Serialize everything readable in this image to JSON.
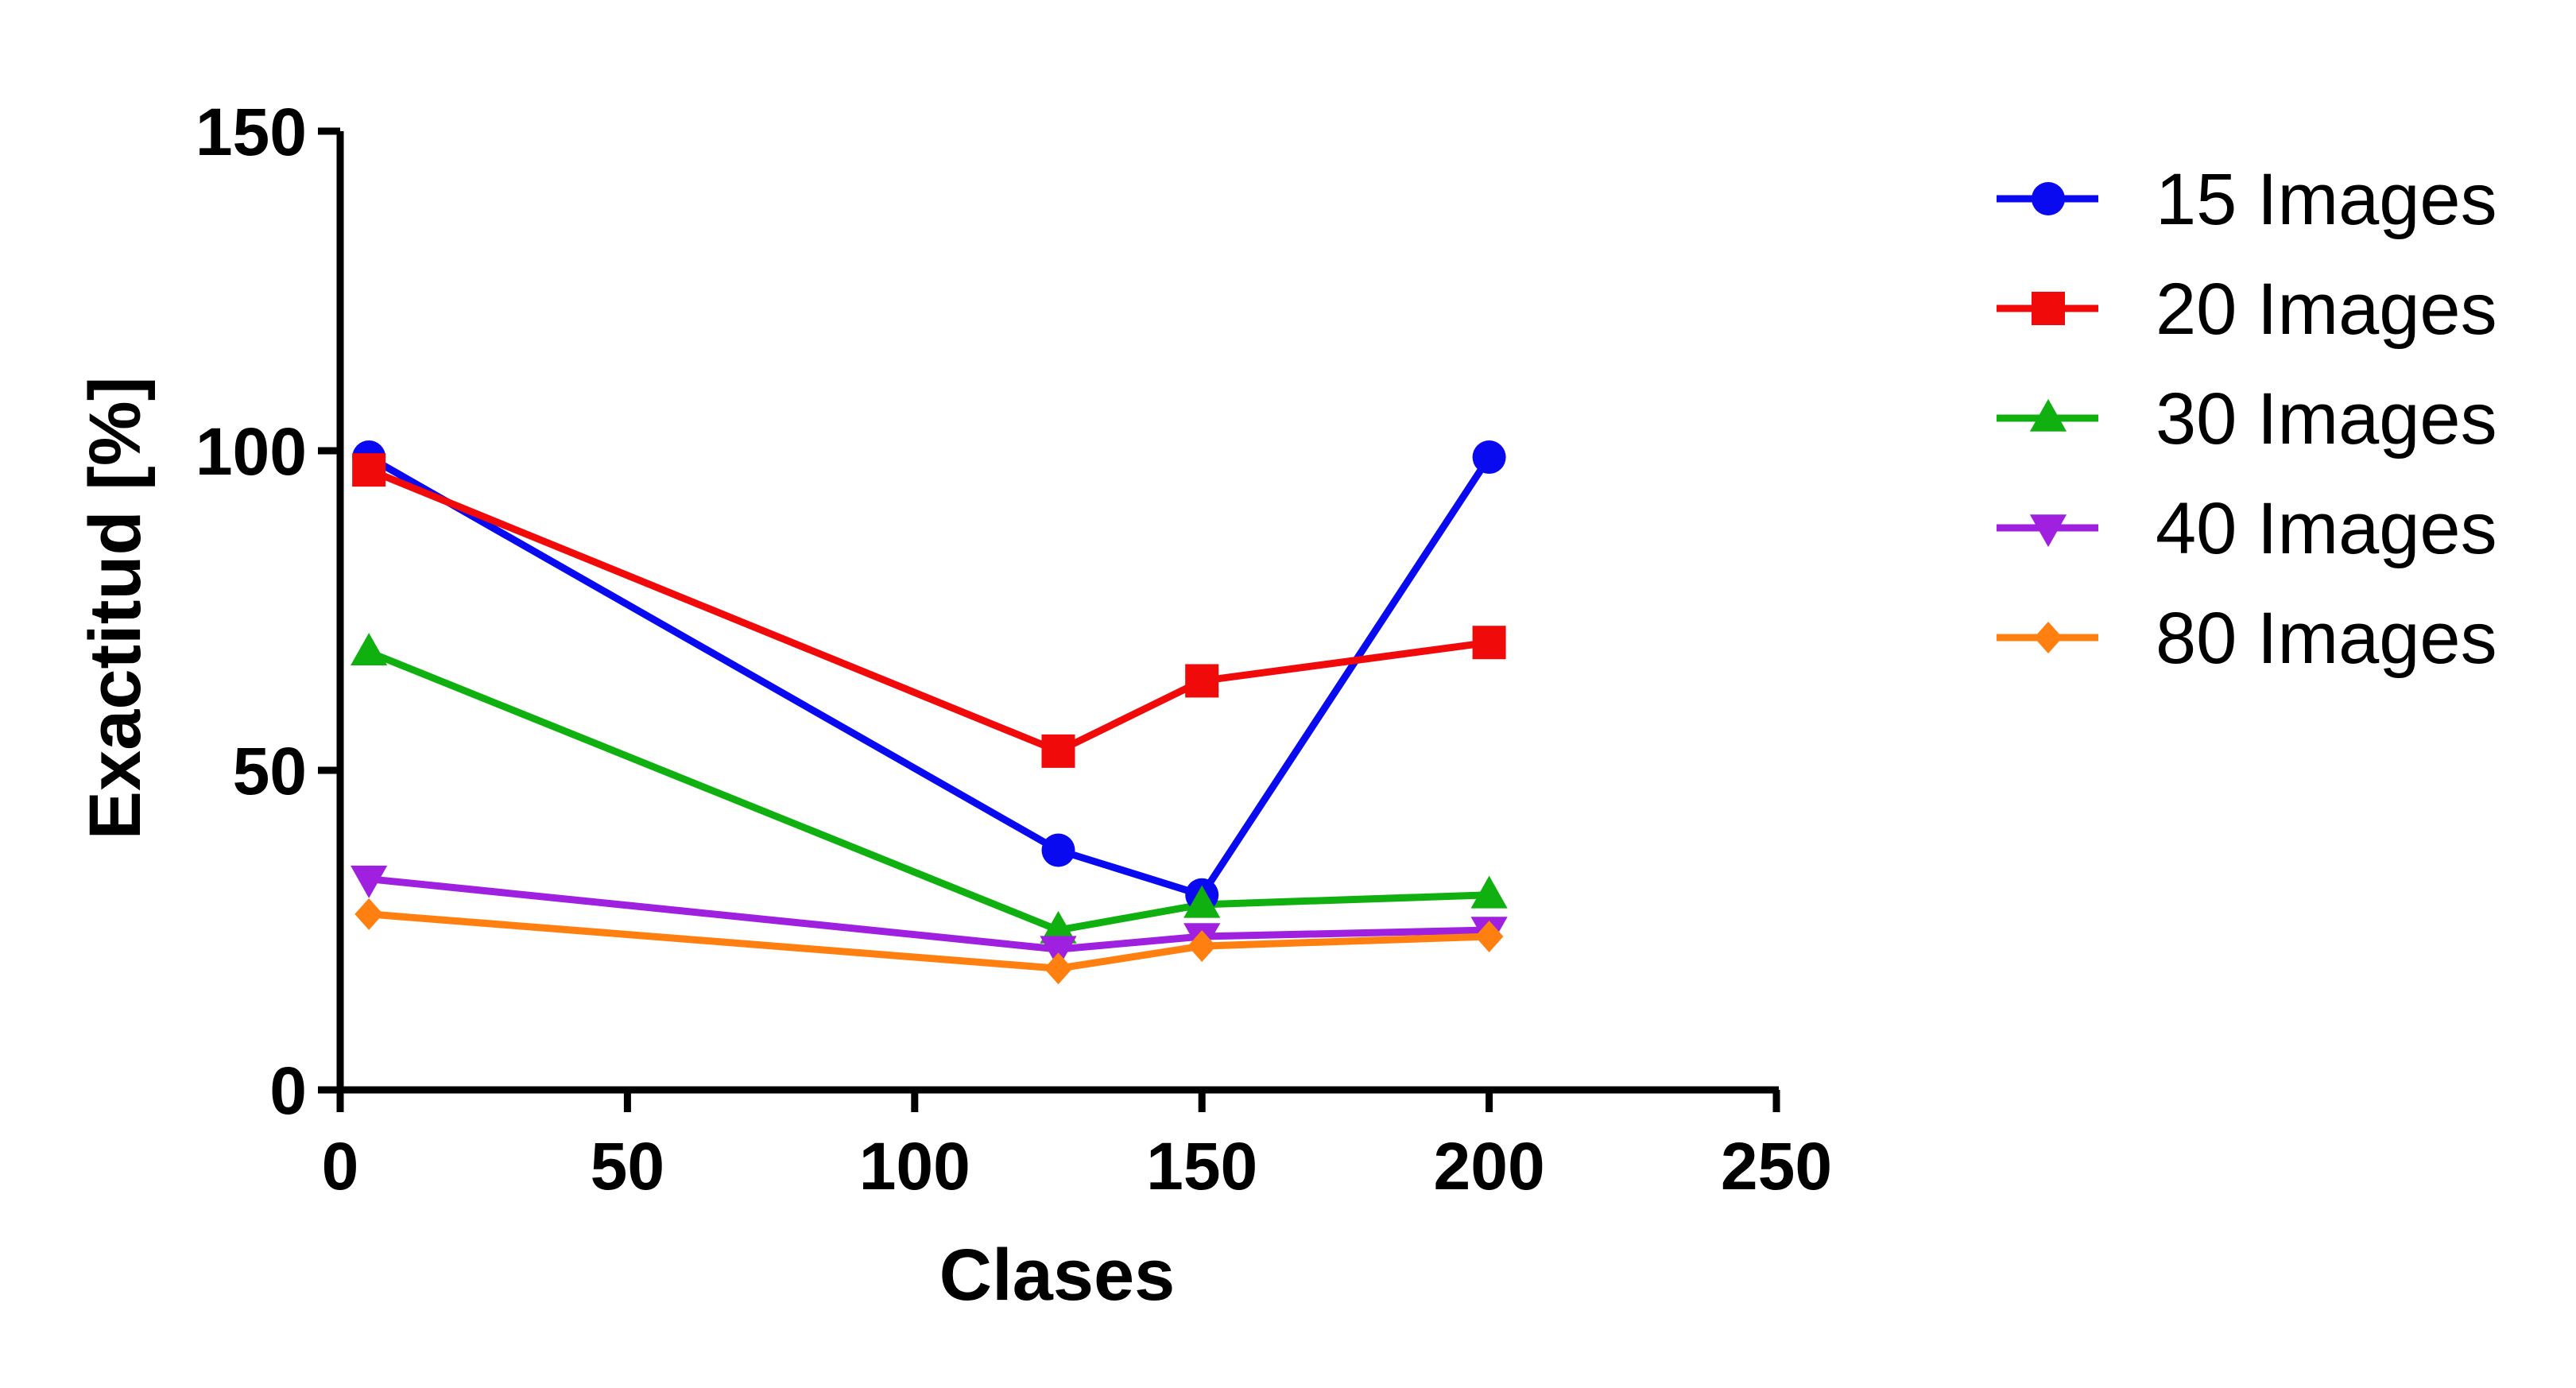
{
  "chart_data": {
    "type": "line",
    "title": "",
    "xlabel": "Clases",
    "ylabel": "Exactitud [%]",
    "xlim": [
      0,
      250
    ],
    "ylim": [
      0,
      150
    ],
    "xticks": [
      0,
      50,
      100,
      150,
      200,
      250
    ],
    "yticks": [
      0,
      50,
      100,
      150
    ],
    "x": [
      5,
      125,
      150,
      200
    ],
    "grid": false,
    "legend_position": "right",
    "series": [
      {
        "name": "15 Images",
        "color": "#0a0af0",
        "marker": "circle",
        "values": [
          99,
          37.5,
          30.5,
          99
        ]
      },
      {
        "name": "20 Images",
        "color": "#f00a0a",
        "marker": "square",
        "values": [
          97,
          53,
          64,
          70
        ]
      },
      {
        "name": "30 Images",
        "color": "#10b010",
        "marker": "triangle-up",
        "values": [
          68.5,
          25,
          29,
          30.5
        ]
      },
      {
        "name": "40 Images",
        "color": "#a020e0",
        "marker": "triangle-down",
        "values": [
          33,
          22,
          24,
          25
        ]
      },
      {
        "name": "80 Images",
        "color": "#ff8010",
        "marker": "diamond",
        "values": [
          27.5,
          19,
          22.5,
          24
        ]
      }
    ]
  }
}
